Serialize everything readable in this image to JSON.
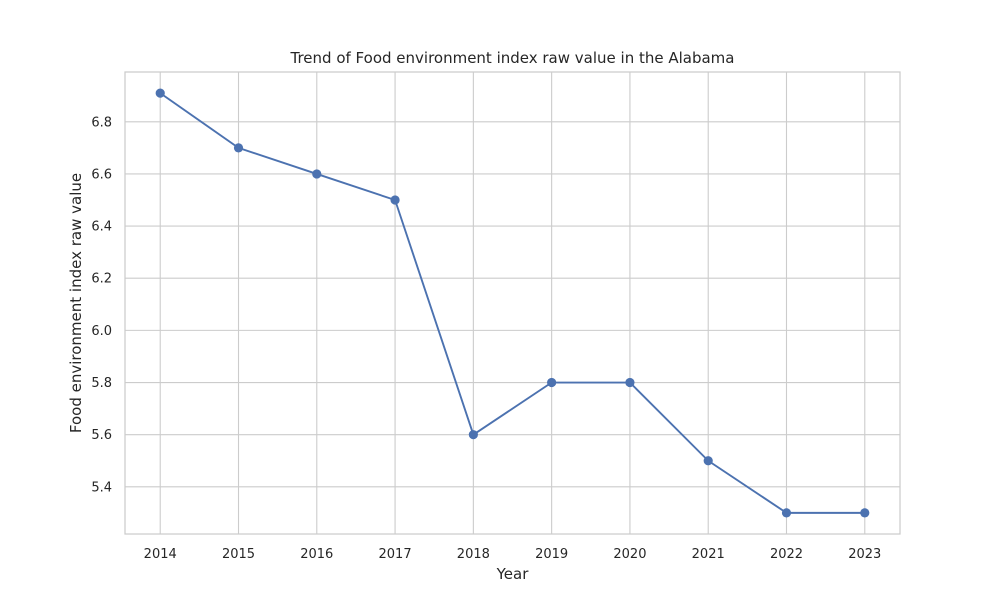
{
  "chart_data": {
    "type": "line",
    "title": "Trend of Food environment index raw value in the Alabama",
    "xlabel": "Year",
    "ylabel": "Food environment index raw value",
    "x": [
      2014,
      2015,
      2016,
      2017,
      2018,
      2019,
      2020,
      2021,
      2022,
      2023
    ],
    "x_tick_labels": [
      "2014",
      "2015",
      "2016",
      "2017",
      "2018",
      "2019",
      "2020",
      "2021",
      "2022",
      "2023"
    ],
    "y_ticks": [
      5.4,
      5.6,
      5.8,
      6.0,
      6.2,
      6.4,
      6.6,
      6.8
    ],
    "y_tick_labels": [
      "5.4",
      "5.6",
      "5.8",
      "6.0",
      "6.2",
      "6.4",
      "6.6",
      "6.8"
    ],
    "series": [
      {
        "values": [
          6.91,
          6.7,
          6.6,
          6.5,
          5.6,
          5.8,
          5.8,
          5.5,
          5.3,
          5.3
        ],
        "color": "#4c72b0",
        "marker": "circle"
      }
    ],
    "xlim": [
      2013.55,
      2023.45
    ],
    "ylim": [
      5.219,
      6.991
    ],
    "grid": true,
    "legend": "none"
  }
}
